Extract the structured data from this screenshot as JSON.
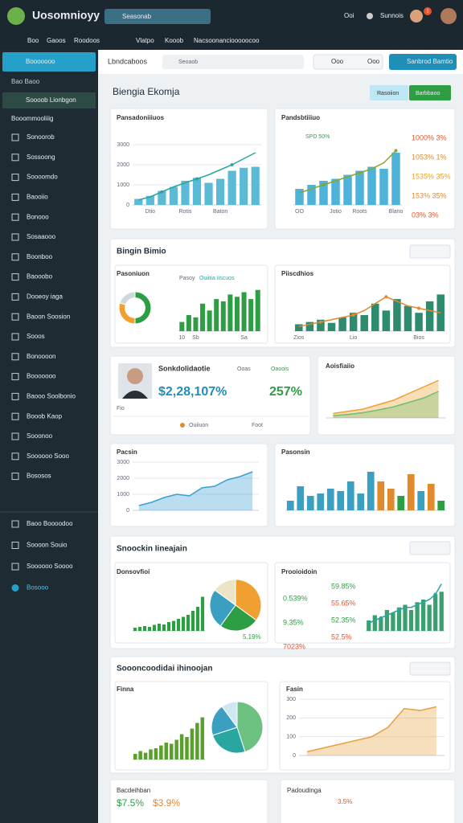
{
  "header": {
    "app": "Uosomnioyy",
    "search": "Seasonab",
    "user": "Ooi",
    "menu": "Sunnois",
    "badge": "1"
  },
  "nav": [
    "Boo",
    "Gaoos",
    "Roodoos",
    "Vlatpo",
    "Kooob",
    "Nacsoonanciooooocoo"
  ],
  "sidebar": {
    "active": "Booooooo",
    "group": "Bao Baoo",
    "selected": "Soooob Lionbgon",
    "heading": "Booommooliiig",
    "items": [
      "Sonoorob",
      "Sossoong",
      "Soooomdo",
      "Baooiio",
      "Bonooo",
      "Sosaaooo",
      "Boonboo",
      "Baooobo",
      "Dooeoy iaga",
      "Baoon Soosion",
      "Sooos",
      "Bonoooon",
      "Booooooo",
      "Baooo Soolbonio",
      "Booob Kaop",
      "Sooonoo",
      "Soooooo Sooo",
      "Bososos"
    ],
    "footer": [
      "Baoo Boooodoo",
      "Soooon Souio",
      "Soooooo Soooo",
      "Bosooo"
    ]
  },
  "subheader": {
    "title": "Lbndcaboos",
    "search": "Seoaob",
    "button1": "Ooo",
    "button2": "Ooo",
    "action": "Sanbrod Bamtio"
  },
  "page": {
    "title": "Biengia Ekomja",
    "filter": "Rasoiion",
    "export": "Barbbaoo"
  },
  "sections": [
    "Bingin Bimio",
    "Snoockin Iineajain",
    "Soooncoodidai ihinoojan"
  ],
  "profile": {
    "name": "Sonkdolidaotie",
    "value": "$2,28,107%",
    "label2": "Ooas",
    "label3": "Oaoois",
    "value2": "257%",
    "note": "Fio",
    "legend1": "Ouiiuon",
    "legend2": "Foot"
  },
  "extras": {
    "b_subtitle": "SPD 50%",
    "side_b": [
      "1000% 3%",
      "1053% 1%",
      "1535% 35%",
      "153% 35%",
      "03% 3%"
    ],
    "legend_c2": "Pasoy",
    "legend_c3": "Ouiitia Iiscuos",
    "side_left": [
      "0.539%",
      "9.35%",
      "7023%"
    ],
    "side_right": [
      "59.85%",
      "55.65%",
      "52.35%",
      "52.5%"
    ],
    "pie_label": "5.19%",
    "bottom1": "Bacdeihban",
    "bottom1a": "$7.5%",
    "bottom1b": "$3.9%",
    "bottom2": "Padoudinga",
    "bottom2a": "3.5%"
  },
  "chart_data": [
    {
      "type": "combo",
      "title": "Pansadoniiiuos",
      "categories": [
        null,
        "Dtio",
        null,
        null,
        "Rotis",
        null,
        null,
        "Baton",
        null,
        null,
        null
      ],
      "ylim": [
        0,
        3000
      ],
      "yticks": [
        0,
        1000,
        2000,
        3000
      ],
      "series": [
        {
          "type": "bar",
          "color": "#5bbad5",
          "values": [
            300,
            450,
            700,
            900,
            1200,
            1350,
            1100,
            1300,
            1700,
            1850,
            1900
          ]
        },
        {
          "type": "line",
          "color": "#2aa6a0",
          "values": [
            250,
            400,
            650,
            900,
            1100,
            1300,
            1500,
            1750,
            2000,
            2300,
            2600
          ]
        }
      ]
    },
    {
      "type": "combo",
      "title": "Pandsbtiiiuo",
      "categories": [
        "OO",
        null,
        null,
        "Jotio",
        null,
        "Roots",
        null,
        null,
        "Blano"
      ],
      "ylim": [
        0,
        3000
      ],
      "series": [
        {
          "type": "bar",
          "color": "#4fb3d9",
          "values": [
            800,
            1000,
            1200,
            1300,
            1500,
            1700,
            1900,
            1800,
            2600
          ]
        },
        {
          "type": "line",
          "color": "#8aa62a",
          "values": [
            600,
            800,
            1000,
            1200,
            1400,
            1600,
            1800,
            2100,
            2700
          ]
        }
      ]
    },
    {
      "type": "pie",
      "title": "Pasoniuon",
      "donut": true,
      "values": [
        50,
        30,
        20
      ],
      "colors": [
        "#2e9e44",
        "#f0a030",
        "#cfd8dc"
      ]
    },
    {
      "type": "bar",
      "categories": [
        "10",
        null,
        "Sb",
        null,
        null,
        null,
        null,
        null,
        null,
        "Sa",
        null,
        null
      ],
      "ylim": [
        0,
        100
      ],
      "series": [
        {
          "type": "bar",
          "color": "#2e9e44",
          "values": [
            20,
            35,
            30,
            60,
            45,
            70,
            65,
            80,
            75,
            85,
            70,
            90
          ]
        }
      ]
    },
    {
      "type": "combo",
      "title": "Piiscdhios",
      "categories": [
        "Zios",
        null,
        null,
        null,
        null,
        "Lio",
        null,
        null,
        null,
        null,
        null,
        "Bios",
        null,
        null
      ],
      "ylim": [
        0,
        100
      ],
      "series": [
        {
          "type": "bar",
          "color": "#2e8b6e",
          "values": [
            15,
            20,
            25,
            18,
            30,
            40,
            35,
            60,
            45,
            70,
            55,
            40,
            65,
            80
          ]
        },
        {
          "type": "line",
          "color": "#e08a2e",
          "values": [
            10,
            15,
            20,
            25,
            30,
            35,
            45,
            60,
            75,
            65,
            55,
            50,
            45,
            40
          ]
        }
      ]
    },
    {
      "type": "area",
      "title": "Aoisfiaiio",
      "categories": [
        null,
        null,
        null,
        null,
        null,
        null,
        null,
        null
      ],
      "ylim": [
        0,
        100
      ],
      "series": [
        {
          "type": "area",
          "color": "#f0a030",
          "values": [
            10,
            15,
            20,
            30,
            40,
            55,
            70,
            85
          ]
        },
        {
          "type": "area",
          "color": "#6cc070",
          "values": [
            5,
            8,
            12,
            18,
            25,
            35,
            45,
            60
          ]
        }
      ]
    },
    {
      "type": "area",
      "title": "Pacsin",
      "categories": [
        null,
        null,
        null,
        null,
        null,
        null,
        null,
        null,
        null,
        null
      ],
      "ylim": [
        0,
        3000
      ],
      "yticks": [
        0,
        1000,
        2000,
        3000
      ],
      "series": [
        {
          "type": "area",
          "color": "#3aa0d0",
          "values": [
            300,
            500,
            800,
            1000,
            900,
            1400,
            1500,
            1900,
            2100,
            2400
          ]
        }
      ]
    },
    {
      "type": "bar",
      "title": "Pasonsin",
      "categories": [
        null,
        null,
        null,
        null,
        null,
        null,
        null,
        null,
        null,
        null,
        null,
        null,
        null,
        null,
        null,
        null
      ],
      "ylim": [
        0,
        100
      ],
      "series": [
        {
          "type": "bar",
          "color": "#3a9fc0",
          "colors": [
            "#3a9fc0",
            "#3a9fc0",
            "#3a9fc0",
            "#3a9fc0",
            "#3a9fc0",
            "#3a9fc0",
            "#3a9fc0",
            "#3a9fc0",
            "#3a9fc0",
            "#e08a2e",
            "#e08a2e",
            "#2e9e44",
            "#e08a2e",
            "#3a9fc0",
            "#e08a2e",
            "#2e9e44"
          ],
          "values": [
            20,
            50,
            30,
            35,
            45,
            40,
            60,
            35,
            80,
            60,
            45,
            30,
            75,
            40,
            55,
            20
          ]
        }
      ]
    },
    {
      "type": "bar",
      "title": "Donsovfioi",
      "categories": [
        null,
        null,
        null,
        null,
        null,
        null,
        null,
        null,
        null,
        null,
        null,
        null,
        null,
        null,
        null
      ],
      "ylim": [
        0,
        100
      ],
      "series": [
        {
          "type": "bar",
          "color": "#2e9e44",
          "values": [
            8,
            10,
            12,
            10,
            15,
            18,
            16,
            22,
            25,
            30,
            35,
            40,
            50,
            60,
            85
          ]
        }
      ]
    },
    {
      "type": "pie",
      "values": [
        35,
        25,
        25,
        15
      ],
      "colors": [
        "#f0a030",
        "#2e9e44",
        "#3a9fc0",
        "#ece4c4"
      ]
    },
    {
      "type": "combo",
      "title": "Prooioidoin",
      "categories": [
        null,
        null,
        null,
        null,
        null,
        null,
        null,
        null,
        null,
        null,
        null,
        null,
        null
      ],
      "ylim": [
        0,
        100
      ],
      "series": [
        {
          "type": "bar",
          "color": "#3aa070",
          "values": [
            20,
            30,
            25,
            40,
            35,
            45,
            50,
            40,
            55,
            60,
            50,
            70,
            75
          ]
        },
        {
          "type": "line",
          "color": "#2aa6a0",
          "values": [
            15,
            20,
            25,
            30,
            35,
            40,
            45,
            45,
            50,
            55,
            60,
            70,
            90
          ]
        }
      ]
    },
    {
      "type": "bar",
      "title": "Finna",
      "categories": [
        null,
        null,
        null,
        null,
        null,
        null,
        null,
        null,
        null,
        null,
        null,
        null,
        null,
        null
      ],
      "ylim": [
        0,
        100
      ],
      "series": [
        {
          "type": "bar",
          "color": "#5aa02c",
          "values": [
            10,
            15,
            12,
            18,
            20,
            25,
            30,
            28,
            35,
            45,
            40,
            55,
            65,
            75
          ]
        }
      ]
    },
    {
      "type": "pie",
      "values": [
        45,
        25,
        20,
        10
      ],
      "colors": [
        "#6cc080",
        "#2aa6a0",
        "#3a9fc0",
        "#cfe8f0"
      ]
    },
    {
      "type": "area",
      "title": "Fasin",
      "categories": [
        null,
        null,
        null,
        null,
        null,
        null,
        null,
        null,
        null
      ],
      "ylim": [
        0,
        300
      ],
      "yticks": [
        0,
        100,
        200,
        300
      ],
      "series": [
        {
          "type": "area",
          "color": "#e8a040",
          "values": [
            20,
            40,
            60,
            80,
            100,
            150,
            250,
            240,
            260
          ]
        }
      ]
    }
  ]
}
